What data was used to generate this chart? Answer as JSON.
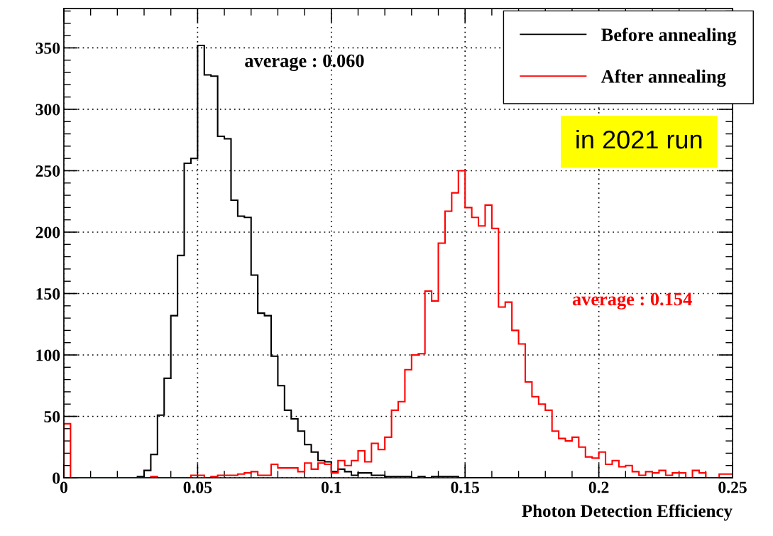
{
  "chart_data": {
    "type": "histogram",
    "xlabel": "Photon Detection Efficiency",
    "bins": [
      0,
      0.0025,
      0.005,
      0.0075,
      0.01,
      0.0125,
      0.015,
      0.0175,
      0.02,
      0.0225,
      0.025,
      0.0275,
      0.03,
      0.0325,
      0.035,
      0.0375,
      0.04,
      0.0425,
      0.045,
      0.0475,
      0.05,
      0.0525,
      0.055,
      0.0575,
      0.06,
      0.0625,
      0.065,
      0.0675,
      0.07,
      0.0725,
      0.075,
      0.0775,
      0.08,
      0.0825,
      0.085,
      0.0875,
      0.09,
      0.0925,
      0.095,
      0.0975,
      0.1,
      0.1025,
      0.105,
      0.1075,
      0.11,
      0.1125,
      0.115,
      0.1175,
      0.12,
      0.1225,
      0.125,
      0.1275,
      0.13,
      0.1325,
      0.135,
      0.1375,
      0.14,
      0.1425,
      0.145,
      0.1475,
      0.15,
      0.1525,
      0.155,
      0.1575,
      0.16,
      0.1625,
      0.165,
      0.1675,
      0.17,
      0.1725,
      0.175,
      0.1775,
      0.18,
      0.1825,
      0.185,
      0.1875,
      0.19,
      0.1925,
      0.195,
      0.1975,
      0.2,
      0.2025,
      0.205,
      0.2075,
      0.21,
      0.2125,
      0.215,
      0.2175,
      0.22,
      0.2225,
      0.225,
      0.2275,
      0.23,
      0.2325,
      0.235,
      0.2375,
      0.24,
      0.2425,
      0.245,
      0.2475,
      0.25
    ],
    "series": [
      {
        "name": "Before annealing",
        "color": "#000000",
        "values": [
          0,
          0,
          0,
          0,
          0,
          0,
          0,
          0,
          0,
          0,
          0,
          1,
          6,
          19,
          51,
          81,
          132,
          181,
          256,
          260,
          352,
          328,
          327,
          278,
          276,
          226,
          213,
          212,
          165,
          134,
          132,
          99,
          75,
          55,
          48,
          38,
          27,
          21,
          14,
          13,
          5,
          7,
          5,
          2,
          4,
          4,
          2,
          2,
          1,
          1,
          1,
          1,
          0,
          1,
          0,
          1,
          1,
          1,
          1,
          0,
          0,
          0,
          0,
          0,
          0,
          0,
          0,
          0,
          0,
          0,
          0,
          0,
          0,
          0,
          0,
          0,
          0,
          0,
          0,
          0,
          0,
          0,
          0,
          0,
          0,
          0,
          0,
          0,
          0,
          0,
          0,
          0,
          0,
          0,
          0,
          0,
          0,
          0,
          0,
          0
        ]
      },
      {
        "name": "After annealing",
        "color": "#ff0000",
        "values": [
          44,
          0,
          0,
          0,
          0,
          0,
          0,
          0,
          0,
          0,
          0,
          0,
          0,
          1,
          0,
          0,
          0,
          0,
          0,
          2,
          2,
          0,
          1,
          2,
          2,
          2,
          3,
          4,
          5,
          2,
          2,
          11,
          8,
          8,
          8,
          5,
          12,
          7,
          12,
          11,
          4,
          14,
          10,
          14,
          22,
          13,
          28,
          23,
          33,
          55,
          62,
          88,
          100,
          101,
          152,
          144,
          191,
          217,
          232,
          250,
          220,
          212,
          205,
          222,
          203,
          139,
          143,
          120,
          109,
          78,
          66,
          60,
          55,
          38,
          32,
          30,
          33,
          25,
          17,
          16,
          21,
          11,
          14,
          9,
          10,
          5,
          2,
          5,
          4,
          6,
          2,
          4,
          4,
          0,
          6,
          4,
          0,
          0,
          3,
          3
        ]
      }
    ],
    "annotations": [
      "average : 0.060",
      "average : 0.154",
      "in 2021 run"
    ],
    "xlim": [
      0,
      0.25
    ],
    "xticks": [
      0,
      0.05,
      0.1,
      0.15,
      0.2,
      0.25
    ],
    "ylim": [
      0,
      382
    ],
    "yticks": [
      0,
      50,
      100,
      150,
      200,
      250,
      300,
      350
    ],
    "grid": true,
    "legend": "top right"
  }
}
